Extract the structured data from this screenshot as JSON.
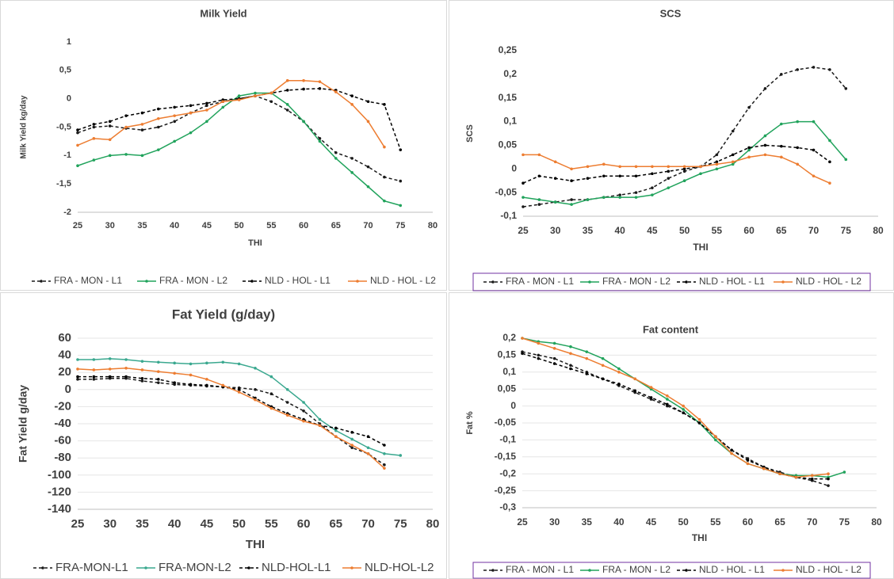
{
  "chart_data": [
    {
      "type": "line",
      "title": "Milk Yield",
      "x_label": "THI",
      "y_label": "Milk Yield kg/day",
      "x": [
        25,
        27.5,
        30,
        32.5,
        35,
        37.5,
        40,
        42.5,
        45,
        47.5,
        50,
        52.5,
        55,
        57.5,
        60,
        62.5,
        65,
        67.5,
        70,
        72.5,
        75
      ],
      "xlim": [
        25,
        80
      ],
      "xticks": [
        25,
        30,
        35,
        40,
        45,
        50,
        55,
        60,
        65,
        70,
        75,
        80
      ],
      "ylim": [
        -2,
        1
      ],
      "yticks": [
        1,
        {
          "value": 0.5,
          "label": "0,5"
        },
        0,
        {
          "value": -0.5,
          "label": "-0,5"
        },
        -1,
        {
          "value": -1.5,
          "label": "-1,5"
        },
        -2
      ],
      "grid": false,
      "series": [
        {
          "name": "FRA - MON - L1",
          "color": "#1a1a1a",
          "dash": true,
          "values": [
            -0.6,
            -0.5,
            -0.48,
            -0.52,
            -0.55,
            -0.5,
            -0.4,
            -0.25,
            -0.12,
            -0.05,
            0,
            0.05,
            -0.05,
            -0.2,
            -0.4,
            -0.7,
            -0.95,
            -1.05,
            -1.2,
            -1.38,
            -1.45
          ]
        },
        {
          "name": "FRA - MON - L2",
          "color": "#21a35c",
          "dash": false,
          "values": [
            -1.18,
            -1.08,
            -1,
            -0.98,
            -1,
            -0.9,
            -0.75,
            -0.6,
            -0.4,
            -0.15,
            0.05,
            0.1,
            0.1,
            -0.1,
            -0.4,
            -0.75,
            -1.05,
            -1.3,
            -1.55,
            -1.8,
            -1.88
          ]
        },
        {
          "name": "NLD - HOL - L1",
          "color": "#000000",
          "dash": true,
          "values": [
            -0.55,
            -0.45,
            -0.4,
            -0.3,
            -0.25,
            -0.18,
            -0.15,
            -0.12,
            -0.08,
            -0.02,
            0,
            0.05,
            0.1,
            0.15,
            0.17,
            0.18,
            0.15,
            0.05,
            -0.05,
            -0.1,
            -0.9
          ]
        },
        {
          "name": "NLD - HOL - L2",
          "color": "#ed7d31",
          "dash": false,
          "values": [
            -0.82,
            -0.7,
            -0.72,
            -0.5,
            -0.45,
            -0.35,
            -0.3,
            -0.25,
            -0.2,
            -0.05,
            -0.02,
            0.05,
            0.1,
            0.32,
            0.32,
            0.3,
            0.12,
            -0.1,
            -0.4,
            -0.85,
            null
          ]
        }
      ]
    },
    {
      "type": "line",
      "title": "SCS",
      "x_label": "THI",
      "y_label": "SCS",
      "x": [
        25,
        27.5,
        30,
        32.5,
        35,
        37.5,
        40,
        42.5,
        45,
        47.5,
        50,
        52.5,
        55,
        57.5,
        60,
        62.5,
        65,
        67.5,
        70,
        72.5,
        75
      ],
      "xlim": [
        25,
        80
      ],
      "xticks": [
        25,
        30,
        35,
        40,
        45,
        50,
        55,
        60,
        65,
        70,
        75,
        80
      ],
      "ylim": [
        -0.1,
        0.25
      ],
      "yticks": [
        {
          "value": 0.25,
          "label": "0,25"
        },
        {
          "value": 0.2,
          "label": "0,2"
        },
        {
          "value": 0.15,
          "label": "0,15"
        },
        {
          "value": 0.1,
          "label": "0,1"
        },
        {
          "value": 0.05,
          "label": "0,05"
        },
        0,
        {
          "value": -0.05,
          "label": "-0,05"
        },
        {
          "value": -0.1,
          "label": "-0,1"
        }
      ],
      "grid": false,
      "series": [
        {
          "name": "FRA - MON - L1",
          "color": "#1a1a1a",
          "dash": true,
          "values": [
            -0.08,
            -0.075,
            -0.07,
            -0.065,
            -0.065,
            -0.06,
            -0.055,
            -0.05,
            -0.04,
            -0.02,
            -0.005,
            0.005,
            0.03,
            0.08,
            0.13,
            0.17,
            0.2,
            0.21,
            0.215,
            0.21,
            0.17
          ]
        },
        {
          "name": "FRA - MON - L2",
          "color": "#21a35c",
          "dash": false,
          "values": [
            -0.06,
            -0.065,
            -0.07,
            -0.075,
            -0.065,
            -0.06,
            -0.06,
            -0.06,
            -0.055,
            -0.04,
            -0.025,
            -0.01,
            0,
            0.01,
            0.04,
            0.07,
            0.095,
            0.1,
            0.1,
            0.06,
            0.02
          ]
        },
        {
          "name": "NLD - HOL - L1",
          "color": "#000000",
          "dash": true,
          "values": [
            -0.03,
            -0.015,
            -0.02,
            -0.025,
            -0.02,
            -0.015,
            -0.015,
            -0.015,
            -0.01,
            -0.005,
            0,
            0.005,
            0.015,
            0.03,
            0.045,
            0.05,
            0.048,
            0.045,
            0.04,
            0.015,
            null
          ]
        },
        {
          "name": "NLD - HOL - L2",
          "color": "#ed7d31",
          "dash": false,
          "values": [
            0.03,
            0.03,
            0.015,
            0,
            0.005,
            0.01,
            0.005,
            0.005,
            0.005,
            0.005,
            0.005,
            0.005,
            0.01,
            0.015,
            0.025,
            0.03,
            0.025,
            0.01,
            -0.015,
            -0.03,
            null
          ]
        }
      ]
    },
    {
      "type": "line",
      "title": "Fat Yield (g/day)",
      "x_label": "THI",
      "y_label": "Fat Yield g/day",
      "x": [
        25,
        27.5,
        30,
        32.5,
        35,
        37.5,
        40,
        42.5,
        45,
        47.5,
        50,
        52.5,
        55,
        57.5,
        60,
        62.5,
        65,
        67.5,
        70,
        72.5,
        75
      ],
      "xlim": [
        25,
        80
      ],
      "xticks": [
        25,
        30,
        35,
        40,
        45,
        50,
        55,
        60,
        65,
        70,
        75,
        80
      ],
      "ylim": [
        -140,
        60
      ],
      "yticks": [
        60,
        40,
        20,
        0,
        -20,
        -40,
        -60,
        -80,
        -100,
        -120,
        -140
      ],
      "grid": true,
      "series": [
        {
          "name": "FRA-MON-L1",
          "color": "#1a1a1a",
          "dash": true,
          "values": [
            12,
            12,
            13,
            13,
            10,
            8,
            6,
            5,
            4,
            3,
            2,
            0,
            -5,
            -15,
            -25,
            -40,
            -55,
            -68,
            -75,
            -88,
            null
          ]
        },
        {
          "name": "FRA-MON-L2",
          "color": "#3aa88f",
          "dash": false,
          "values": [
            35,
            35,
            36,
            35,
            33,
            32,
            31,
            30,
            31,
            32,
            30,
            25,
            15,
            0,
            -15,
            -35,
            -48,
            -58,
            -68,
            -75,
            -77
          ]
        },
        {
          "name": "NLD-HOL-L1",
          "color": "#000000",
          "dash": true,
          "values": [
            15,
            15,
            15,
            15,
            13,
            12,
            8,
            6,
            5,
            3,
            0,
            -10,
            -20,
            -28,
            -35,
            -42,
            -45,
            -50,
            -55,
            -65,
            null
          ]
        },
        {
          "name": "NLD-HOL-L2",
          "color": "#ed7d31",
          "dash": false,
          "values": [
            24,
            23,
            24,
            25,
            23,
            21,
            19,
            17,
            12,
            5,
            -3,
            -12,
            -22,
            -30,
            -37,
            -42,
            -55,
            -65,
            -75,
            -92,
            null
          ]
        }
      ]
    },
    {
      "type": "line",
      "title": "Fat content",
      "x_label": "THI",
      "y_label": "Fat %",
      "x": [
        25,
        27.5,
        30,
        32.5,
        35,
        37.5,
        40,
        42.5,
        45,
        47.5,
        50,
        52.5,
        55,
        57.5,
        60,
        62.5,
        65,
        67.5,
        70,
        72.5,
        75
      ],
      "xlim": [
        25,
        80
      ],
      "xticks": [
        25,
        30,
        35,
        40,
        45,
        50,
        55,
        60,
        65,
        70,
        75,
        80
      ],
      "ylim": [
        -0.3,
        0.2
      ],
      "yticks": [
        {
          "value": 0.2,
          "label": "0,2"
        },
        {
          "value": 0.15,
          "label": "0,15"
        },
        {
          "value": 0.1,
          "label": "0,1"
        },
        {
          "value": 0.05,
          "label": "0,05"
        },
        0,
        {
          "value": -0.05,
          "label": "-0,05"
        },
        {
          "value": -0.1,
          "label": "-0,1"
        },
        {
          "value": -0.15,
          "label": "-0,15"
        },
        {
          "value": -0.2,
          "label": "-0,2"
        },
        {
          "value": -0.25,
          "label": "-0,25"
        },
        {
          "value": -0.3,
          "label": "-0,3"
        }
      ],
      "grid": true,
      "series": [
        {
          "name": "FRA - MON - L1",
          "color": "#1a1a1a",
          "dash": true,
          "values": [
            0.16,
            0.15,
            0.14,
            0.12,
            0.1,
            0.08,
            0.06,
            0.04,
            0.02,
            0,
            -0.02,
            -0.05,
            -0.09,
            -0.13,
            -0.155,
            -0.18,
            -0.195,
            -0.21,
            -0.22,
            -0.235,
            null
          ]
        },
        {
          "name": "FRA - MON - L2",
          "color": "#21a35c",
          "dash": false,
          "values": [
            0.2,
            0.19,
            0.185,
            0.175,
            0.16,
            0.14,
            0.11,
            0.08,
            0.05,
            0.02,
            -0.01,
            -0.05,
            -0.1,
            -0.14,
            -0.17,
            -0.185,
            -0.2,
            -0.205,
            -0.205,
            -0.21,
            -0.195
          ]
        },
        {
          "name": "NLD - HOL - L1",
          "color": "#000000",
          "dash": true,
          "values": [
            0.155,
            0.14,
            0.125,
            0.11,
            0.095,
            0.08,
            0.065,
            0.045,
            0.025,
            0.005,
            -0.02,
            -0.05,
            -0.09,
            -0.13,
            -0.16,
            -0.18,
            -0.2,
            -0.21,
            -0.215,
            -0.215,
            null
          ]
        },
        {
          "name": "NLD - HOL - L2",
          "color": "#ed7d31",
          "dash": false,
          "values": [
            0.2,
            0.185,
            0.17,
            0.155,
            0.14,
            0.12,
            0.1,
            0.08,
            0.055,
            0.03,
            0,
            -0.04,
            -0.09,
            -0.14,
            -0.17,
            -0.185,
            -0.2,
            -0.21,
            -0.205,
            -0.2,
            null
          ]
        }
      ]
    }
  ]
}
